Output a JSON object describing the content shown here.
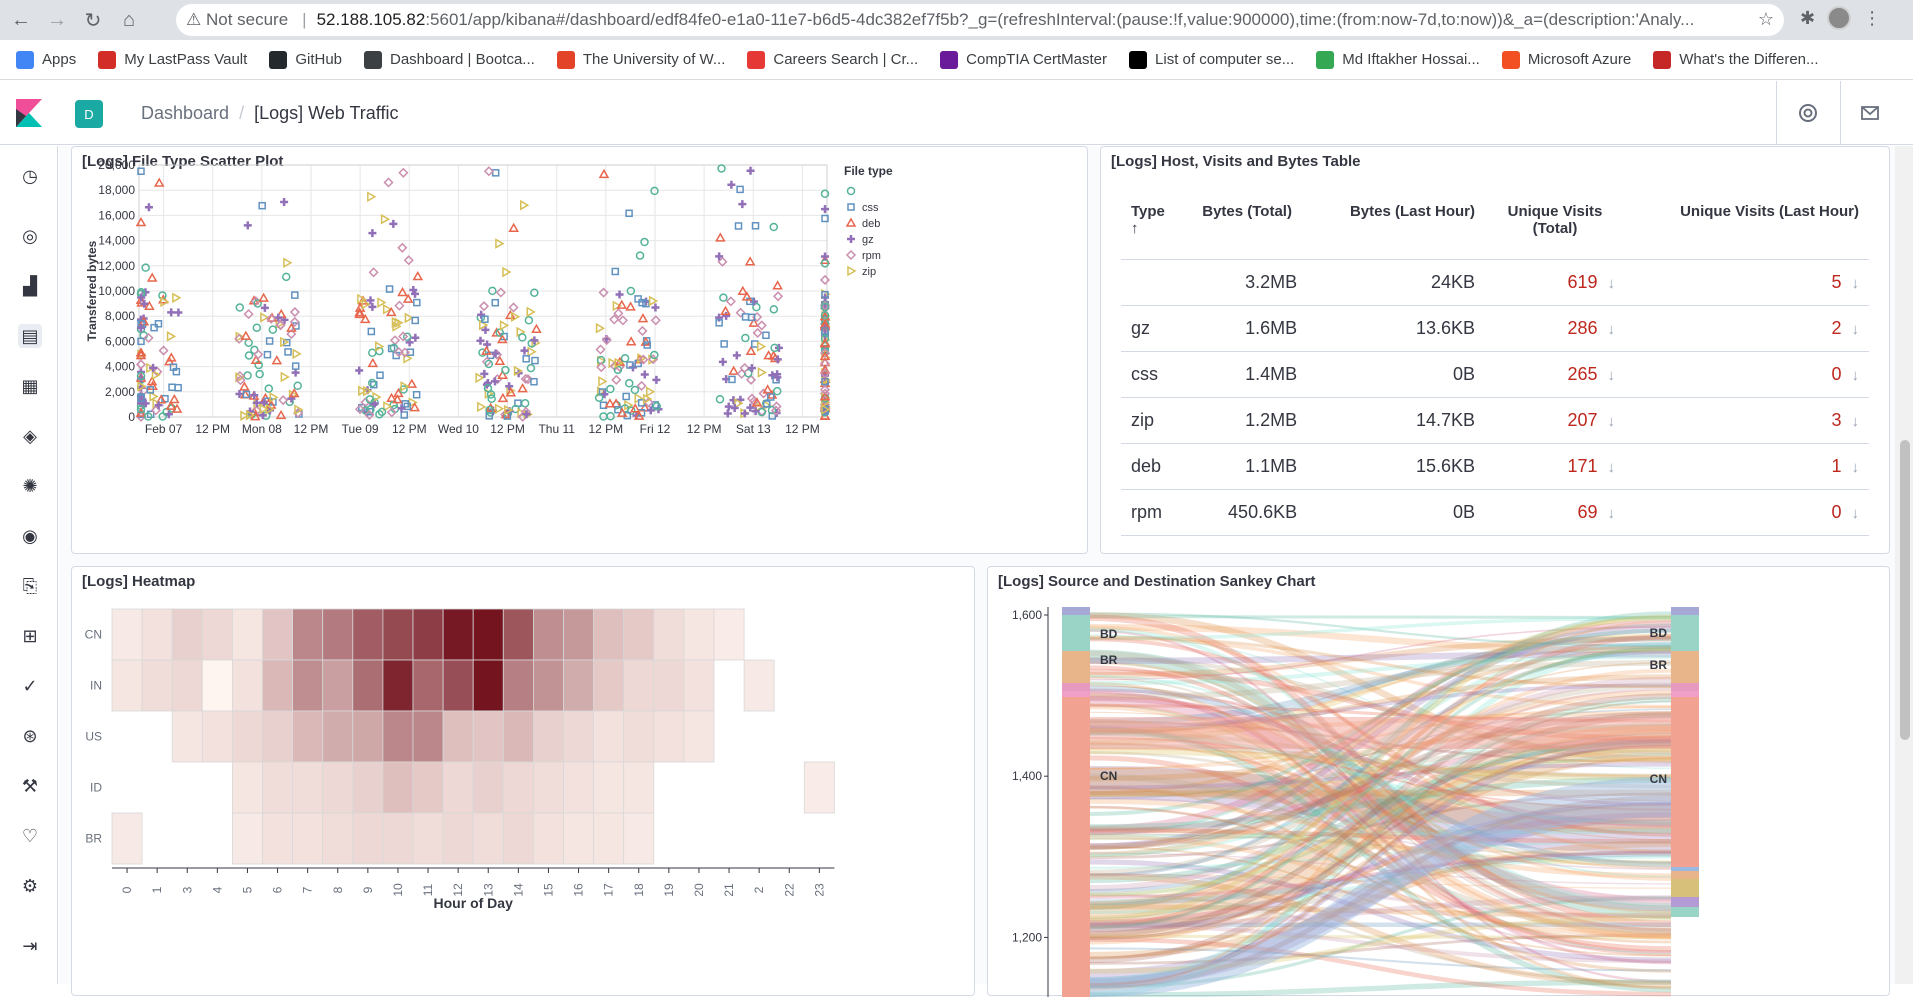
{
  "browser": {
    "not_secure": "Not secure",
    "host": "52.188.105.82",
    "path": ":5601/app/kibana#/dashboard/edf84fe0-e1a0-11e7-b6d5-4dc382ef7f5b?_g=(refreshInterval:(pause:!f,value:900000),time:(from:now-7d,to:now))&_a=(description:'Analy...",
    "bookmarks": [
      {
        "label": "Apps",
        "color": "#4285f4"
      },
      {
        "label": "My LastPass Vault",
        "color": "#d32d27"
      },
      {
        "label": "GitHub",
        "color": "#24292e"
      },
      {
        "label": "Dashboard | Bootca...",
        "color": "#3c4043"
      },
      {
        "label": "The University of W...",
        "color": "#e24329"
      },
      {
        "label": "Careers Search | Cr...",
        "color": "#e53935"
      },
      {
        "label": "CompTIA CertMaster",
        "color": "#6a1b9a"
      },
      {
        "label": "List of computer se...",
        "color": "#000000"
      },
      {
        "label": "Md Iftakher Hossai...",
        "color": "#34a853"
      },
      {
        "label": "Microsoft Azure",
        "color": "#f25022"
      },
      {
        "label": "What's the Differen...",
        "color": "#c62828"
      }
    ]
  },
  "kibana": {
    "space_initial": "D",
    "breadcrumb": [
      "Dashboard",
      "[Logs] Web Traffic"
    ]
  },
  "panels": {
    "scatter_title": "[Logs] File Type Scatter Plot",
    "table_title": "[Logs] Host, Visits and Bytes Table",
    "heatmap_title": "[Logs] Heatmap",
    "sankey_title": "[Logs] Source and Destination Sankey Chart"
  },
  "table": {
    "headers": [
      "Type",
      "Bytes (Total)",
      "Bytes (Last Hour)",
      "Unique Visits (Total)",
      "Unique Visits (Last Hour)"
    ],
    "sort_arrow": "↑",
    "row_arrow": "↓",
    "rows": [
      [
        "",
        "3.2MB",
        "24KB",
        "619",
        "5"
      ],
      [
        "gz",
        "1.6MB",
        "13.6KB",
        "286",
        "2"
      ],
      [
        "css",
        "1.4MB",
        "0B",
        "265",
        "0"
      ],
      [
        "zip",
        "1.2MB",
        "14.7KB",
        "207",
        "3"
      ],
      [
        "deb",
        "1.1MB",
        "15.6KB",
        "171",
        "1"
      ],
      [
        "rpm",
        "450.6KB",
        "0B",
        "69",
        "0"
      ]
    ]
  },
  "chart_data": [
    {
      "type": "scatter",
      "title": "[Logs] File Type Scatter Plot",
      "ylabel": "Transferred bytes",
      "ylim": [
        0,
        20000
      ],
      "yticks": [
        "0",
        "2,000",
        "4,000",
        "6,000",
        "8,000",
        "10,000",
        "12,000",
        "14,000",
        "16,000",
        "18,000",
        "20,000"
      ],
      "xticks": [
        "Feb 07",
        "12 PM",
        "Mon 08",
        "12 PM",
        "Tue 09",
        "12 PM",
        "Wed 10",
        "12 PM",
        "Thu 11",
        "12 PM",
        "Fri 12",
        "12 PM",
        "Sat 13",
        "12 PM"
      ],
      "legend_title": "File type",
      "legend_position": "right",
      "series": [
        {
          "name": "",
          "marker": "circle",
          "color": "#54b399"
        },
        {
          "name": "css",
          "marker": "square",
          "color": "#6092c0"
        },
        {
          "name": "deb",
          "marker": "triangle",
          "color": "#e7664c"
        },
        {
          "name": "gz",
          "marker": "plus",
          "color": "#9170b8"
        },
        {
          "name": "rpm",
          "marker": "diamond",
          "color": "#ca8eae"
        },
        {
          "name": "zip",
          "marker": "triangle-right",
          "color": "#d6bf57"
        }
      ]
    },
    {
      "type": "heatmap",
      "title": "[Logs] Heatmap",
      "xlabel": "Hour of Day",
      "x": [
        "0",
        "1",
        "3",
        "4",
        "5",
        "6",
        "7",
        "8",
        "9",
        "10",
        "11",
        "12",
        "13",
        "14",
        "15",
        "16",
        "17",
        "18",
        "19",
        "20",
        "21",
        "2",
        "22",
        "23"
      ],
      "y": [
        "CN",
        "IN",
        "US",
        "ID",
        "BR"
      ],
      "values": [
        [
          0.05,
          0.08,
          0.15,
          0.12,
          0.06,
          0.2,
          0.45,
          0.5,
          0.62,
          0.7,
          0.75,
          0.9,
          0.92,
          0.65,
          0.42,
          0.38,
          0.22,
          0.18,
          0.1,
          0.06,
          0.04,
          null,
          null,
          null
        ],
        [
          0.06,
          0.1,
          0.12,
          0.0,
          0.08,
          0.25,
          0.42,
          0.35,
          0.55,
          0.85,
          0.58,
          0.68,
          0.92,
          0.48,
          0.4,
          0.3,
          0.18,
          0.12,
          0.12,
          0.08,
          null,
          0.05,
          null,
          null
        ],
        [
          null,
          null,
          0.06,
          0.08,
          0.12,
          0.15,
          0.25,
          0.3,
          0.32,
          0.45,
          0.45,
          0.22,
          0.2,
          0.25,
          0.15,
          0.12,
          0.08,
          0.1,
          0.08,
          0.06,
          null,
          null,
          null,
          null
        ],
        [
          null,
          null,
          null,
          null,
          0.06,
          0.1,
          0.1,
          0.12,
          0.15,
          0.22,
          0.18,
          0.12,
          0.15,
          0.12,
          0.1,
          0.08,
          0.06,
          0.06,
          null,
          null,
          null,
          null,
          null,
          0.04
        ],
        [
          0.05,
          null,
          null,
          null,
          0.05,
          0.08,
          0.08,
          0.1,
          0.12,
          0.12,
          0.1,
          0.12,
          0.1,
          0.12,
          0.08,
          0.06,
          0.06,
          0.05,
          null,
          null,
          null,
          null,
          null,
          null
        ]
      ],
      "color_scale": [
        "#fff5f0",
        "#67000d"
      ]
    },
    {
      "type": "sankey",
      "title": "[Logs] Source and Destination Sankey Chart",
      "yticks": [
        "1,200",
        "1,400",
        "1,600"
      ],
      "ylim": [
        1150,
        1600
      ],
      "source_nodes": [
        "BD",
        "BR",
        "CN"
      ],
      "dest_nodes": [
        "BD",
        "BR",
        "CN"
      ]
    }
  ]
}
